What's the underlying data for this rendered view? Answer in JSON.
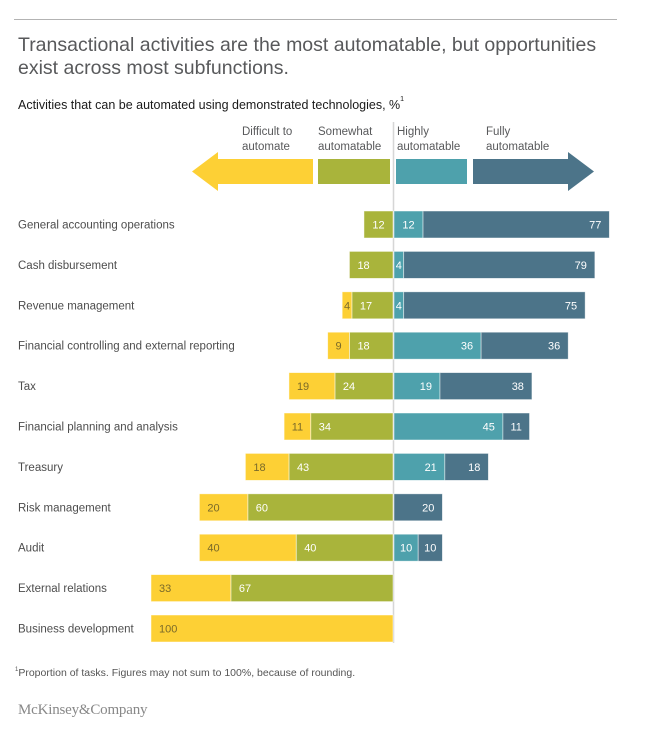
{
  "title": "Transactional activities are the most automatable, but opportunities exist across most subfunctions.",
  "subtitle": "Activities that can be automated using demonstrated technologies, %",
  "subtitle_sup": "1",
  "footnote_sup": "1",
  "footnote": "Proportion of tasks. Figures may not sum to 100%, because of rounding.",
  "logo": "McKinsey&Company",
  "colors": {
    "difficult": "#fdd035",
    "somewhat": "#a9b43b",
    "highly": "#4ea1ac",
    "fully": "#4c7489",
    "label_dark": "#7a6a2a",
    "label_light": "#ffffff"
  },
  "chart_data": {
    "type": "bar",
    "orientation": "horizontal-diverging",
    "title": "Transactional activities are the most automatable, but opportunities exist across most subfunctions.",
    "subtitle": "Activities that can be automated using demonstrated technologies, %",
    "unit": "%",
    "legend": [
      {
        "key": "difficult",
        "line1": "Difficult to",
        "line2": "automate",
        "direction": "left"
      },
      {
        "key": "somewhat",
        "line1": "Somewhat",
        "line2": "automatable",
        "direction": "left"
      },
      {
        "key": "highly",
        "line1": "Highly",
        "line2": "automatable",
        "direction": "right"
      },
      {
        "key": "fully",
        "line1": "Fully",
        "line2": "automatable",
        "direction": "right"
      }
    ],
    "legend_position": "top",
    "categories": [
      "General accounting operations",
      "Cash disbursement",
      "Revenue management",
      "Financial controlling and external reporting",
      "Tax",
      "Financial planning and analysis",
      "Treasury",
      "Risk management",
      "Audit",
      "External relations",
      "Business development"
    ],
    "series": [
      {
        "name": "Difficult to automate",
        "key": "difficult",
        "side": "left",
        "values": [
          0,
          0,
          4,
          9,
          19,
          11,
          18,
          20,
          40,
          33,
          100
        ]
      },
      {
        "name": "Somewhat automatable",
        "key": "somewhat",
        "side": "left",
        "values": [
          12,
          18,
          17,
          18,
          24,
          34,
          43,
          60,
          40,
          67,
          0
        ]
      },
      {
        "name": "Highly automatable",
        "key": "highly",
        "side": "right",
        "values": [
          12,
          4,
          4,
          36,
          19,
          45,
          21,
          0,
          10,
          0,
          0
        ]
      },
      {
        "name": "Fully automatable",
        "key": "fully",
        "side": "right",
        "values": [
          77,
          79,
          75,
          36,
          38,
          11,
          18,
          20,
          10,
          0,
          0
        ]
      }
    ],
    "xlim": [
      -100,
      100
    ],
    "grid": false
  }
}
